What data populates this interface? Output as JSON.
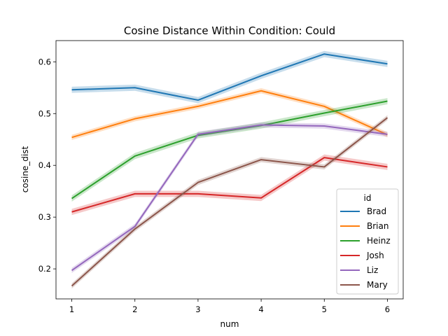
{
  "chart_data": {
    "type": "line",
    "title": "Cosine Distance Within Condition: Could",
    "xlabel": "num",
    "ylabel": "cosine_dist",
    "x": [
      1,
      2,
      3,
      4,
      5,
      6
    ],
    "xlim": [
      0.75,
      6.25
    ],
    "ylim": [
      0.142,
      0.641
    ],
    "xticks": [
      1,
      2,
      3,
      4,
      5,
      6
    ],
    "yticks": [
      0.2,
      0.3,
      0.4,
      0.5,
      0.6
    ],
    "grid": false,
    "legend": {
      "title": "id",
      "placement": "lower right"
    },
    "series": [
      {
        "name": "Brad",
        "color": "#1f77b4",
        "values": [
          0.546,
          0.55,
          0.526,
          0.573,
          0.615,
          0.596
        ],
        "ci": 0.006
      },
      {
        "name": "Brian",
        "color": "#ff7f0e",
        "values": [
          0.454,
          0.49,
          0.514,
          0.544,
          0.514,
          0.459
        ],
        "ci": 0.005
      },
      {
        "name": "Heinz",
        "color": "#2ca02c",
        "values": [
          0.336,
          0.418,
          0.458,
          0.477,
          0.501,
          0.524
        ],
        "ci": 0.006
      },
      {
        "name": "Josh",
        "color": "#d62728",
        "values": [
          0.31,
          0.345,
          0.345,
          0.337,
          0.415,
          0.397
        ],
        "ci": 0.006
      },
      {
        "name": "Liz",
        "color": "#9467bd",
        "values": [
          0.197,
          0.282,
          0.46,
          0.478,
          0.476,
          0.46
        ],
        "ci": 0.005
      },
      {
        "name": "Mary",
        "color": "#8c564b",
        "values": [
          0.167,
          0.277,
          0.367,
          0.411,
          0.397,
          0.492
        ],
        "ci": 0.005
      }
    ]
  }
}
